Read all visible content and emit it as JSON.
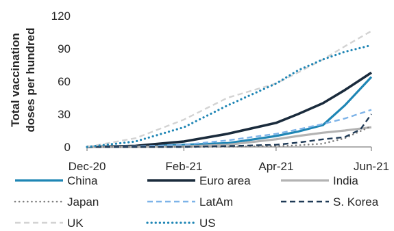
{
  "chart_data": {
    "type": "line",
    "ylabel_lines": [
      "Total vaccination",
      "doses per hundred"
    ],
    "xlabel": "",
    "ylim": [
      0,
      120
    ],
    "yticks": [
      0,
      30,
      60,
      90,
      120
    ],
    "xlim": [
      "2020-12-01",
      "2021-06-01"
    ],
    "xticks": [
      {
        "date": "2020-12-01",
        "label": "Dec-20"
      },
      {
        "date": "2021-02-01",
        "label": "Feb-21"
      },
      {
        "date": "2021-04-01",
        "label": "Apr-21"
      },
      {
        "date": "2021-06-01",
        "label": "Jun-21"
      }
    ],
    "legend_position": "bottom",
    "series": [
      {
        "name": "China",
        "color": "#1f86b5",
        "style": "solid",
        "width": 3.2,
        "points": [
          [
            "2020-12-01",
            0
          ],
          [
            "2021-01-01",
            0.5
          ],
          [
            "2021-02-01",
            2
          ],
          [
            "2021-03-01",
            3.5
          ],
          [
            "2021-04-01",
            10
          ],
          [
            "2021-04-15",
            14
          ],
          [
            "2021-05-01",
            20
          ],
          [
            "2021-05-15",
            38
          ],
          [
            "2021-06-01",
            64
          ]
        ]
      },
      {
        "name": "Euro area",
        "color": "#1a2b3c",
        "style": "solid",
        "width": 3.6,
        "points": [
          [
            "2020-12-01",
            0
          ],
          [
            "2021-01-01",
            1
          ],
          [
            "2021-02-01",
            5
          ],
          [
            "2021-03-01",
            12
          ],
          [
            "2021-04-01",
            22
          ],
          [
            "2021-04-15",
            30
          ],
          [
            "2021-05-01",
            40
          ],
          [
            "2021-05-15",
            52
          ],
          [
            "2021-06-01",
            68
          ]
        ]
      },
      {
        "name": "India",
        "color": "#b3b3b3",
        "style": "solid",
        "width": 3.2,
        "points": [
          [
            "2020-12-01",
            0
          ],
          [
            "2021-01-01",
            0
          ],
          [
            "2021-02-01",
            0.5
          ],
          [
            "2021-03-01",
            2
          ],
          [
            "2021-04-01",
            7
          ],
          [
            "2021-04-15",
            10
          ],
          [
            "2021-05-01",
            13
          ],
          [
            "2021-05-15",
            15
          ],
          [
            "2021-06-01",
            18
          ]
        ]
      },
      {
        "name": "Japan",
        "color": "#7f7f7f",
        "style": "dotted",
        "width": 2.6,
        "points": [
          [
            "2020-12-01",
            0
          ],
          [
            "2021-01-01",
            0
          ],
          [
            "2021-02-01",
            0
          ],
          [
            "2021-03-01",
            0.2
          ],
          [
            "2021-04-01",
            0.8
          ],
          [
            "2021-04-15",
            1.5
          ],
          [
            "2021-05-01",
            3
          ],
          [
            "2021-05-15",
            8
          ],
          [
            "2021-06-01",
            19
          ]
        ]
      },
      {
        "name": "LatAm",
        "color": "#7db3e8",
        "style": "dashed",
        "width": 2.4,
        "points": [
          [
            "2020-12-01",
            0
          ],
          [
            "2021-01-01",
            0.5
          ],
          [
            "2021-02-01",
            2
          ],
          [
            "2021-03-01",
            6
          ],
          [
            "2021-04-01",
            12
          ],
          [
            "2021-04-15",
            16
          ],
          [
            "2021-05-01",
            21
          ],
          [
            "2021-05-15",
            26
          ],
          [
            "2021-06-01",
            34
          ]
        ]
      },
      {
        "name": "S. Korea",
        "color": "#1f3a56",
        "style": "dashed",
        "width": 2.4,
        "points": [
          [
            "2020-12-01",
            0
          ],
          [
            "2021-01-01",
            0
          ],
          [
            "2021-02-01",
            0
          ],
          [
            "2021-03-01",
            0.8
          ],
          [
            "2021-04-01",
            2
          ],
          [
            "2021-04-15",
            4
          ],
          [
            "2021-05-01",
            7
          ],
          [
            "2021-05-15",
            9
          ],
          [
            "2021-05-25",
            16
          ],
          [
            "2021-06-01",
            30
          ]
        ]
      },
      {
        "name": "UK",
        "color": "#d3d3d3",
        "style": "dashed",
        "width": 2.4,
        "points": [
          [
            "2020-12-01",
            0
          ],
          [
            "2021-01-01",
            8
          ],
          [
            "2021-02-01",
            25
          ],
          [
            "2021-03-01",
            45
          ],
          [
            "2021-04-01",
            58
          ],
          [
            "2021-04-15",
            68
          ],
          [
            "2021-05-01",
            80
          ],
          [
            "2021-05-15",
            92
          ],
          [
            "2021-06-01",
            106
          ]
        ]
      },
      {
        "name": "US",
        "color": "#1f86b5",
        "style": "dotted",
        "width": 3.2,
        "points": [
          [
            "2020-12-01",
            0
          ],
          [
            "2021-01-01",
            5
          ],
          [
            "2021-02-01",
            18
          ],
          [
            "2021-03-01",
            38
          ],
          [
            "2021-04-01",
            58
          ],
          [
            "2021-04-15",
            70
          ],
          [
            "2021-05-01",
            80
          ],
          [
            "2021-05-15",
            87
          ],
          [
            "2021-06-01",
            93
          ]
        ]
      }
    ]
  }
}
